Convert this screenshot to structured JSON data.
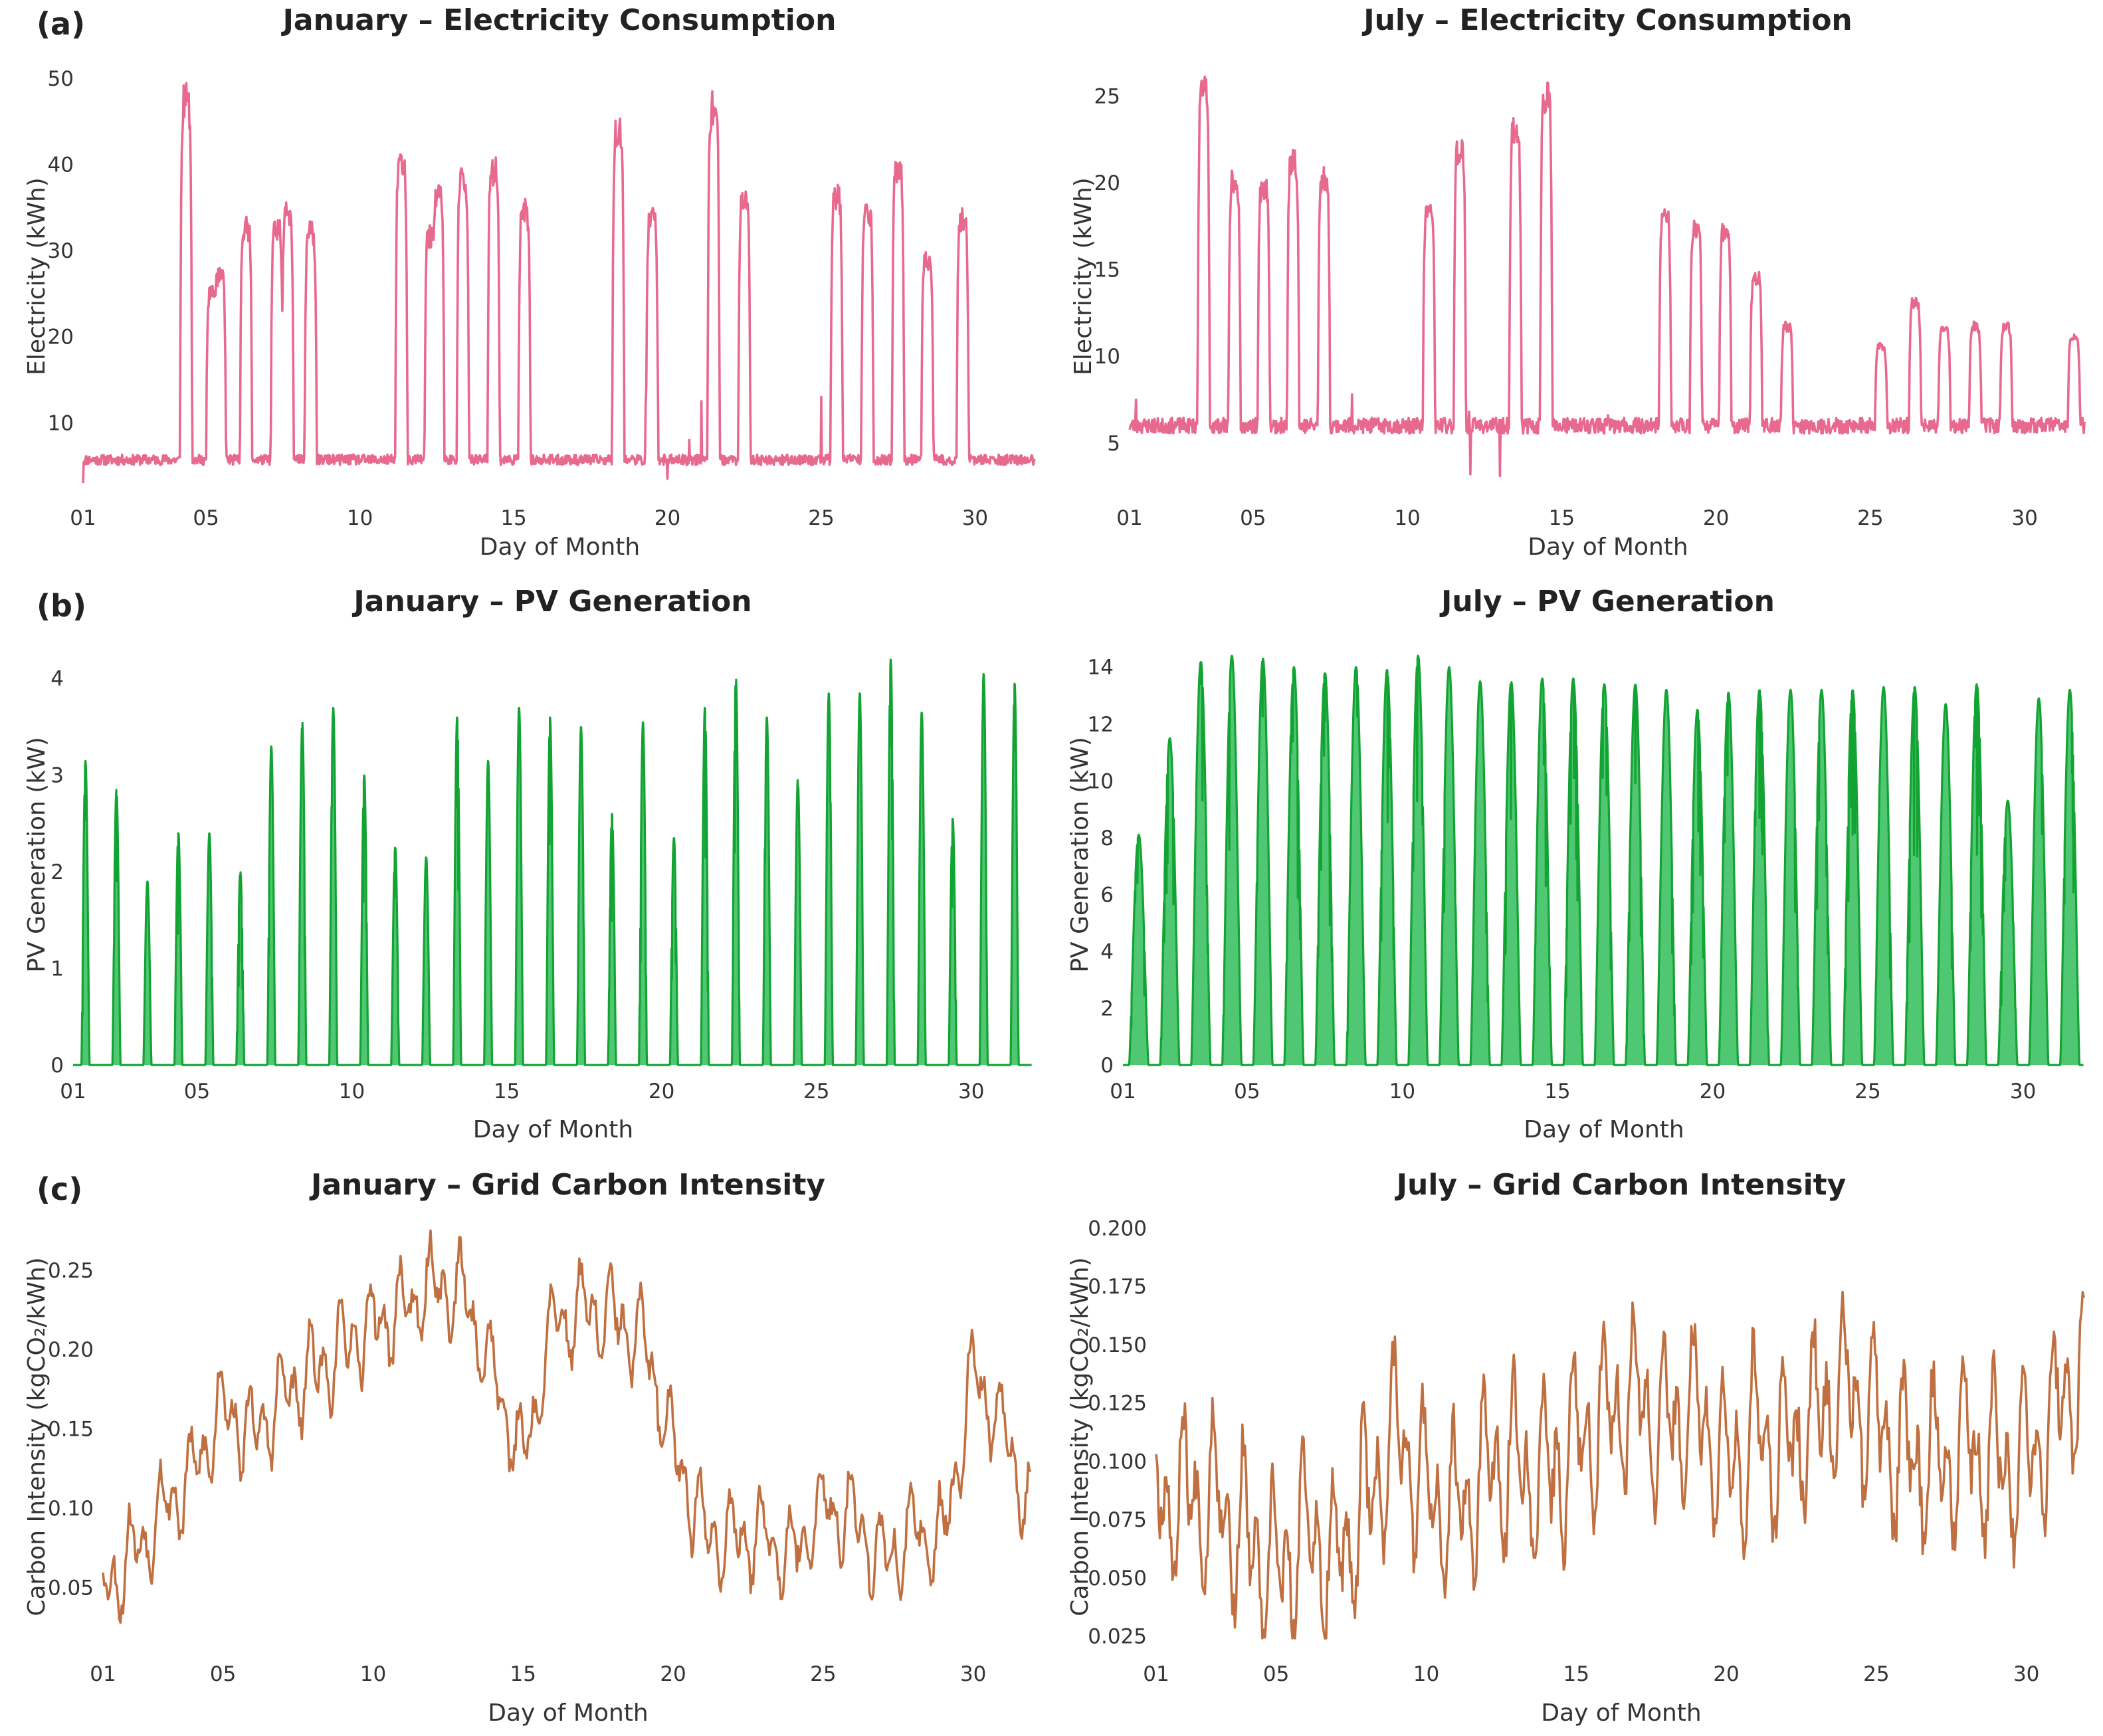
{
  "panel_labels": [
    "(a)",
    "(b)",
    "(c)"
  ],
  "colors": {
    "electricity": "#e8698e",
    "pv_line": "#12a332",
    "pv_fill": "#46c46c",
    "carbon": "#c07040"
  },
  "chart_data": [
    {
      "id": "jan-elec",
      "type": "line",
      "title": "January – Electricity Consumption",
      "xlabel": "Day of Month",
      "ylabel": "Electricity (kWh)",
      "xlim": [
        1,
        32
      ],
      "ylim": [
        2,
        52
      ],
      "xticks": [
        1,
        5,
        10,
        15,
        20,
        25,
        30
      ],
      "xtick_labels": [
        "01",
        "05",
        "10",
        "15",
        "20",
        "25",
        "30"
      ],
      "yticks": [
        10,
        20,
        30,
        40,
        50
      ],
      "ytick_labels": [
        "10",
        "20",
        "30",
        "40",
        "50"
      ],
      "baseline": 5.7,
      "noise": 0.6,
      "peaks": [
        [
          4.35,
          49.5
        ],
        [
          5.2,
          26
        ],
        [
          5.45,
          28
        ],
        [
          6.3,
          34
        ],
        [
          7.3,
          34
        ],
        [
          7.65,
          36
        ],
        [
          8.4,
          33.5
        ],
        [
          11.35,
          42
        ],
        [
          12.3,
          33
        ],
        [
          12.55,
          38
        ],
        [
          13.35,
          40
        ],
        [
          14.35,
          41
        ],
        [
          15.35,
          36
        ],
        [
          18.4,
          46
        ],
        [
          19.5,
          35
        ],
        [
          21.5,
          48.5
        ],
        [
          22.5,
          37
        ],
        [
          25.5,
          38
        ],
        [
          26.5,
          36
        ],
        [
          27.5,
          41.5
        ],
        [
          28.45,
          30
        ],
        [
          29.6,
          35
        ]
      ],
      "events": [
        [
          1.0,
          3.0
        ],
        [
          19.3,
          12.0
        ],
        [
          20.0,
          3.5
        ],
        [
          20.7,
          8.0
        ],
        [
          21.1,
          12.5
        ],
        [
          24.7,
          6.0
        ],
        [
          25.0,
          13.0
        ]
      ]
    },
    {
      "id": "jul-elec",
      "type": "line",
      "title": "July – Electricity Consumption",
      "xlabel": "Day of Month",
      "ylabel": "Electricity (kWh)",
      "xlim": [
        1,
        32
      ],
      "ylim": [
        2.2,
        27
      ],
      "xticks": [
        1,
        5,
        10,
        15,
        20,
        25,
        30
      ],
      "xtick_labels": [
        "01",
        "05",
        "10",
        "15",
        "20",
        "25",
        "30"
      ],
      "yticks": [
        5,
        10,
        15,
        20,
        25
      ],
      "ytick_labels": [
        "5",
        "10",
        "15",
        "20",
        "25"
      ],
      "baseline": 6.0,
      "noise": 0.45,
      "peaks": [
        [
          3.4,
          26.2
        ],
        [
          4.4,
          20.8
        ],
        [
          5.35,
          20.5
        ],
        [
          6.3,
          22
        ],
        [
          7.3,
          21
        ],
        [
          10.7,
          19
        ],
        [
          11.7,
          22.7
        ],
        [
          13.5,
          24
        ],
        [
          14.5,
          26
        ],
        [
          18.35,
          18.8
        ],
        [
          19.35,
          18
        ],
        [
          20.3,
          17.8
        ],
        [
          21.3,
          15
        ],
        [
          22.3,
          12
        ],
        [
          25.35,
          10.8
        ],
        [
          26.45,
          13.5
        ],
        [
          27.4,
          11.8
        ],
        [
          28.4,
          12
        ],
        [
          29.4,
          12
        ],
        [
          31.6,
          11.5
        ]
      ],
      "events": [
        [
          1.2,
          7.5
        ],
        [
          8.2,
          7.8
        ],
        [
          12.0,
          6.8
        ],
        [
          12.05,
          3.2
        ],
        [
          13.0,
          3.1
        ],
        [
          16.5,
          6.6
        ]
      ]
    },
    {
      "id": "jan-pv",
      "type": "area",
      "title": "January – PV Generation",
      "xlabel": "Day of Month",
      "ylabel": "PV Generation (kW)",
      "xlim": [
        1,
        32
      ],
      "ylim": [
        0,
        4.35
      ],
      "xticks": [
        1,
        5,
        10,
        15,
        20,
        25,
        30
      ],
      "xtick_labels": [
        "01",
        "05",
        "10",
        "15",
        "20",
        "25",
        "30"
      ],
      "yticks": [
        0,
        1,
        2,
        3,
        4
      ],
      "ytick_labels": [
        "0",
        "1",
        "2",
        "3",
        "4"
      ],
      "day_peaks": [
        3.15,
        2.85,
        1.9,
        2.4,
        2.4,
        2.0,
        3.3,
        3.55,
        3.7,
        3.0,
        2.25,
        2.15,
        3.6,
        3.15,
        3.7,
        3.6,
        3.5,
        2.6,
        3.55,
        2.35,
        3.7,
        4.0,
        3.6,
        2.95,
        3.85,
        3.85,
        4.2,
        3.65,
        2.55,
        4.05,
        3.95
      ],
      "day_start": 0.27,
      "day_width": 0.26
    },
    {
      "id": "jul-pv",
      "type": "area",
      "title": "July – PV Generation",
      "xlabel": "Day of Month",
      "ylabel": "PV Generation (kW)",
      "xlim": [
        1,
        32
      ],
      "ylim": [
        0,
        14.8
      ],
      "xticks": [
        1,
        5,
        10,
        15,
        20,
        25,
        30
      ],
      "xtick_labels": [
        "01",
        "05",
        "10",
        "15",
        "20",
        "25",
        "30"
      ],
      "yticks": [
        0,
        2,
        4,
        6,
        8,
        10,
        12,
        14
      ],
      "ytick_labels": [
        "0",
        "2",
        "4",
        "6",
        "8",
        "10",
        "12",
        "14"
      ],
      "day_peaks": [
        8.1,
        11.5,
        14.2,
        14.4,
        14.3,
        14.0,
        13.8,
        14.0,
        13.9,
        14.4,
        14.0,
        13.5,
        13.5,
        13.6,
        13.6,
        13.4,
        13.4,
        13.2,
        12.5,
        13.1,
        13.2,
        13.2,
        13.2,
        13.2,
        13.3,
        13.3,
        12.7,
        13.4,
        9.3,
        12.9,
        13.2
      ],
      "day_start": 0.2,
      "day_width": 0.62
    },
    {
      "id": "jan-carbon",
      "type": "line",
      "title": "January – Grid Carbon Intensity",
      "xlabel": "Day of Month",
      "ylabel": "Carbon Intensity (kgCO₂/kWh)",
      "xlim": [
        1,
        32
      ],
      "ylim": [
        0.012,
        0.278
      ],
      "xticks": [
        1,
        5,
        10,
        15,
        20,
        25,
        30
      ],
      "xtick_labels": [
        "01",
        "05",
        "10",
        "15",
        "20",
        "25",
        "30"
      ],
      "yticks": [
        0.05,
        0.1,
        0.15,
        0.2,
        0.25
      ],
      "ytick_labels": [
        "0.05",
        "0.10",
        "0.15",
        "0.20",
        "0.25"
      ],
      "trend": [
        [
          1,
          0.05
        ],
        [
          2,
          0.07
        ],
        [
          3,
          0.1
        ],
        [
          4,
          0.12
        ],
        [
          5,
          0.165
        ],
        [
          6,
          0.145
        ],
        [
          7,
          0.17
        ],
        [
          8,
          0.185
        ],
        [
          9,
          0.2
        ],
        [
          10,
          0.215
        ],
        [
          11,
          0.225
        ],
        [
          12,
          0.24
        ],
        [
          13,
          0.235
        ],
        [
          14,
          0.185
        ],
        [
          15,
          0.13
        ],
        [
          16,
          0.215
        ],
        [
          17,
          0.225
        ],
        [
          18,
          0.22
        ],
        [
          19,
          0.205
        ],
        [
          20,
          0.14
        ],
        [
          21,
          0.085
        ],
        [
          22,
          0.08
        ],
        [
          23,
          0.085
        ],
        [
          24,
          0.07
        ],
        [
          25,
          0.1
        ],
        [
          26,
          0.095
        ],
        [
          27,
          0.065
        ],
        [
          28,
          0.085
        ],
        [
          29,
          0.08
        ],
        [
          30,
          0.185
        ],
        [
          31,
          0.15
        ],
        [
          32,
          0.09
        ]
      ],
      "amplitude": 0.032
    },
    {
      "id": "jul-carbon",
      "type": "line",
      "title": "July – Grid Carbon Intensity",
      "xlabel": "Day of Month",
      "ylabel": "Carbon Intensity (kgCO₂/kWh)",
      "xlim": [
        1,
        32
      ],
      "ylim": [
        0.02,
        0.201
      ],
      "xticks": [
        1,
        5,
        10,
        15,
        20,
        25,
        30
      ],
      "xtick_labels": [
        "01",
        "05",
        "10",
        "15",
        "20",
        "25",
        "30"
      ],
      "yticks": [
        0.025,
        0.05,
        0.075,
        0.1,
        0.125,
        0.15,
        0.175,
        0.2
      ],
      "ytick_labels": [
        "0.025",
        "0.050",
        "0.075",
        "0.100",
        "0.125",
        "0.150",
        "0.175",
        "0.200"
      ],
      "trend": [
        [
          1,
          0.085
        ],
        [
          3,
          0.085
        ],
        [
          4,
          0.065
        ],
        [
          5,
          0.05
        ],
        [
          6,
          0.07
        ],
        [
          7,
          0.055
        ],
        [
          8,
          0.08
        ],
        [
          9,
          0.115
        ],
        [
          10,
          0.085
        ],
        [
          11,
          0.075
        ],
        [
          12,
          0.095
        ],
        [
          13,
          0.1
        ],
        [
          14,
          0.09
        ],
        [
          15,
          0.11
        ],
        [
          16,
          0.12
        ],
        [
          17,
          0.13
        ],
        [
          18,
          0.115
        ],
        [
          19,
          0.12
        ],
        [
          20,
          0.1
        ],
        [
          21,
          0.11
        ],
        [
          22,
          0.105
        ],
        [
          23,
          0.12
        ],
        [
          24,
          0.13
        ],
        [
          25,
          0.115
        ],
        [
          26,
          0.1
        ],
        [
          27,
          0.1
        ],
        [
          28,
          0.105
        ],
        [
          29,
          0.1
        ],
        [
          30,
          0.095
        ],
        [
          31,
          0.12
        ],
        [
          32,
          0.14
        ]
      ],
      "amplitude": 0.042
    }
  ]
}
